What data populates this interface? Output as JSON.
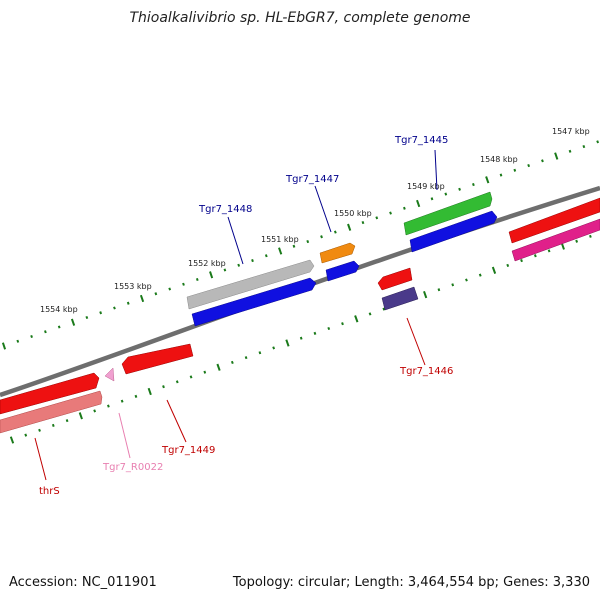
{
  "title": "Thioalkalivibrio sp. HL-EbGR7, complete genome",
  "footer": {
    "accession": "Accession: NC_011901",
    "summary": "Topology: circular; Length: 3,464,554 bp; Genes: 3,330"
  },
  "scale_labels": [
    "1547 kbp",
    "1548 kbp",
    "1549 kbp",
    "1550 kbp",
    "1551 kbp",
    "1552 kbp",
    "1553 kbp",
    "1554 kbp"
  ],
  "gene_labels": {
    "tgr7_1445": "Tgr7_1445",
    "tgr7_1446": "Tgr7_1446",
    "tgr7_1447": "Tgr7_1447",
    "tgr7_1448": "Tgr7_1448",
    "tgr7_1449": "Tgr7_1449",
    "tgr7_r0022": "Tgr7_R0022",
    "thrs": "thrS"
  },
  "colors": {
    "backbone": "#6e6e6e",
    "tick": "#1a7a1a",
    "forward_label": "#00008b",
    "reverse_label": "#c00000",
    "rna_label": "#e87fb0",
    "gene_red": "#ee1111",
    "gene_pink_light": "#e87a7a",
    "gene_blue": "#1010e0",
    "gene_gray": "#b8b8b8",
    "gene_orange": "#f08a10",
    "gene_green": "#33bb33",
    "gene_purple": "#4a3a8a",
    "gene_magenta": "#e0208a",
    "gene_rna": "#f0a0d0"
  }
}
